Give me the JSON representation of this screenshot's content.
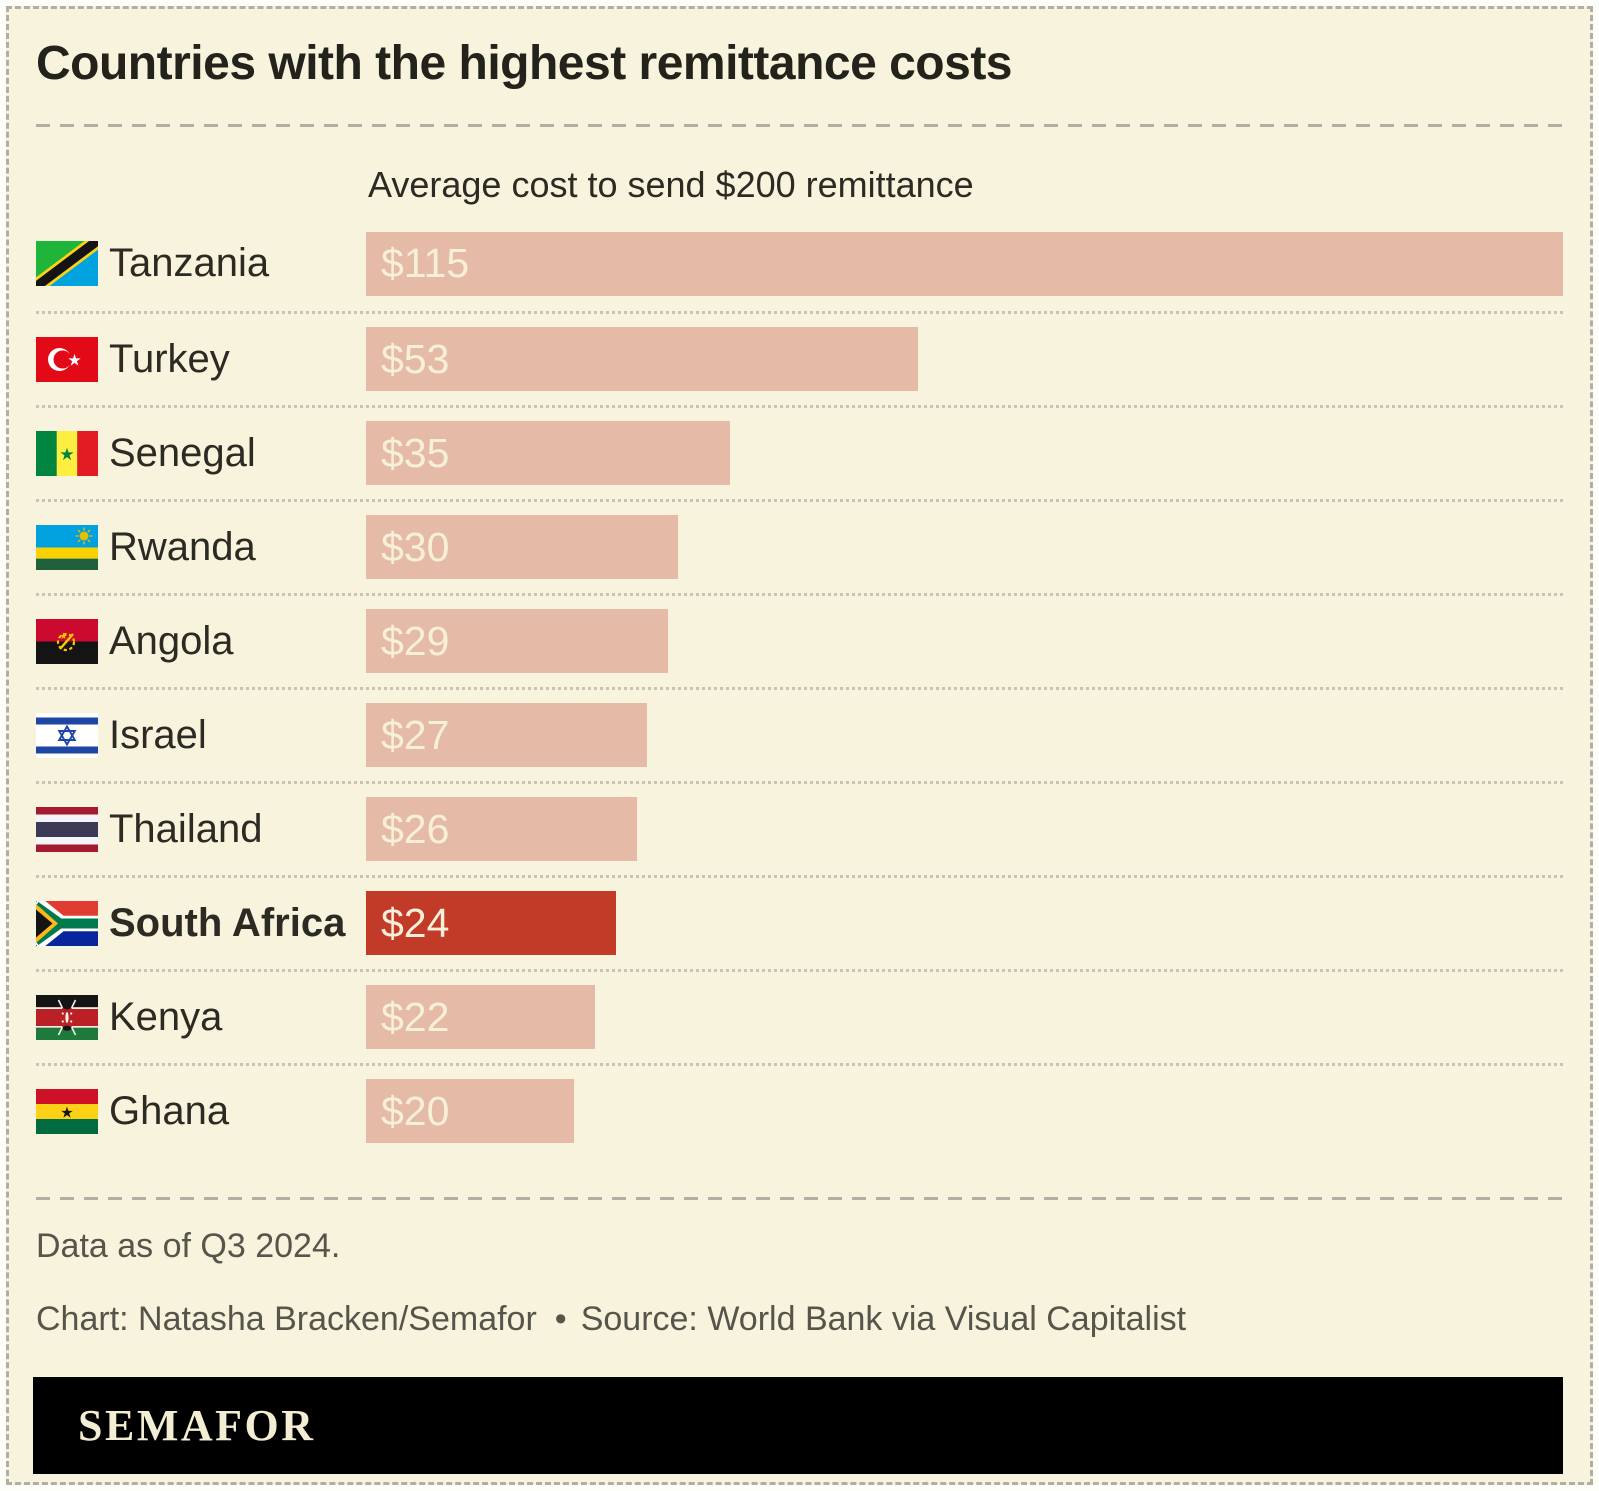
{
  "title": "Countries with the highest remittance costs",
  "axis_label": "Average cost to send $200 remittance",
  "rows": [
    {
      "country": "Tanzania",
      "flag": "tanzania",
      "value": 115,
      "value_label": "$115",
      "highlight": false
    },
    {
      "country": "Turkey",
      "flag": "turkey",
      "value": 53,
      "value_label": "$53",
      "highlight": false
    },
    {
      "country": "Senegal",
      "flag": "senegal",
      "value": 35,
      "value_label": "$35",
      "highlight": false
    },
    {
      "country": "Rwanda",
      "flag": "rwanda",
      "value": 30,
      "value_label": "$30",
      "highlight": false
    },
    {
      "country": "Angola",
      "flag": "angola",
      "value": 29,
      "value_label": "$29",
      "highlight": false
    },
    {
      "country": "Israel",
      "flag": "israel",
      "value": 27,
      "value_label": "$27",
      "highlight": false
    },
    {
      "country": "Thailand",
      "flag": "thailand",
      "value": 26,
      "value_label": "$26",
      "highlight": false
    },
    {
      "country": "South Africa",
      "flag": "south-africa",
      "value": 24,
      "value_label": "$24",
      "highlight": true
    },
    {
      "country": "Kenya",
      "flag": "kenya",
      "value": 22,
      "value_label": "$22",
      "highlight": false
    },
    {
      "country": "Ghana",
      "flag": "ghana",
      "value": 20,
      "value_label": "$20",
      "highlight": false
    }
  ],
  "footer": {
    "note": "Data as of Q3 2024.",
    "credit": "Chart: Natasha Bracken/Semafor",
    "bullet": "•",
    "source": "Source: World Bank via Visual Capitalist",
    "logo": "SEMAFOR"
  },
  "colors": {
    "background": "#f8f3dc",
    "bar": "#e5bba8",
    "highlight_bar": "#c23a28",
    "value_text": "#f6f0d8",
    "title_text": "#23221b",
    "label_text": "#2b2a23",
    "footer_text": "#56554b",
    "separator_dash": "#b1afa4",
    "separator_dot": "#c7c4b4",
    "logo_bg": "#000000",
    "logo_text": "#f3edd3"
  },
  "chart_data": {
    "type": "bar",
    "orientation": "horizontal",
    "title": "Countries with the highest remittance costs",
    "value_axis_label": "Average cost to send $200 remittance",
    "categories": [
      "Tanzania",
      "Turkey",
      "Senegal",
      "Rwanda",
      "Angola",
      "Israel",
      "Thailand",
      "South Africa",
      "Kenya",
      "Ghana"
    ],
    "values": [
      115,
      53,
      35,
      30,
      29,
      27,
      26,
      24,
      22,
      20
    ],
    "value_labels": [
      "$115",
      "$53",
      "$35",
      "$30",
      "$29",
      "$27",
      "$26",
      "$24",
      "$22",
      "$20"
    ],
    "unit": "USD",
    "xlim": [
      0,
      115
    ],
    "highlighted_category": "South Africa",
    "bar_color": "#e5bba8",
    "highlight_color": "#c23a28",
    "grid": false,
    "legend": false,
    "note": "Data as of Q3 2024.",
    "credit": "Chart: Natasha Bracken/Semafor",
    "source": "Source: World Bank via Visual Capitalist"
  }
}
